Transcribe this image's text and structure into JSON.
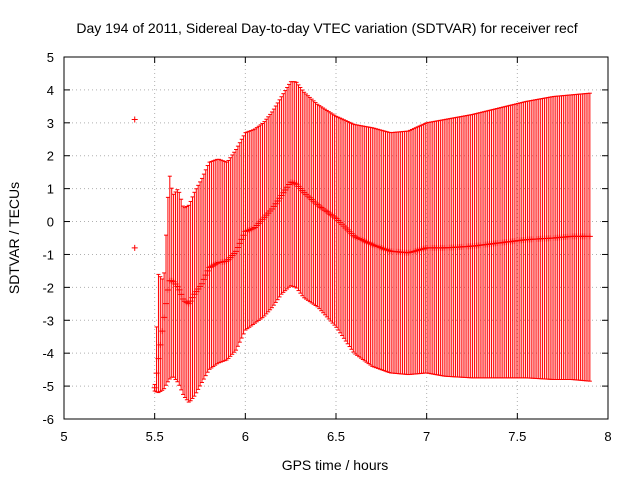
{
  "chart_data": {
    "type": "scatter",
    "title": "Day 194 of 2011, Sidereal Day-to-day VTEC variation (SDTVAR) for receiver recf",
    "xlabel": "GPS time / hours",
    "ylabel": "SDTVAR / TECUs",
    "xlim": [
      5,
      8
    ],
    "ylim": [
      -6,
      5
    ],
    "xticks": [
      "5",
      "5.5",
      "6",
      "6.5",
      "7",
      "7.5",
      "8"
    ],
    "yticks": [
      "-6",
      "-5",
      "-4",
      "-3",
      "-2",
      "-1",
      "0",
      "1",
      "2",
      "3",
      "4",
      "5"
    ],
    "grid": true,
    "series_color": "#ff0000",
    "error_bars": true,
    "isolated_points": [
      {
        "x": 5.39,
        "y": 3.1
      },
      {
        "x": 5.39,
        "y": -0.8
      }
    ],
    "profile": [
      {
        "x": 5.5,
        "y": -5.05,
        "upper": -4.95,
        "lower": -5.15
      },
      {
        "x": 5.52,
        "y": -4.2,
        "upper": -1.6,
        "lower": -5.2
      },
      {
        "x": 5.55,
        "y": -3.0,
        "upper": -1.8,
        "lower": -5.1
      },
      {
        "x": 5.58,
        "y": -1.8,
        "upper": 1.5,
        "lower": -4.8
      },
      {
        "x": 5.6,
        "y": -1.8,
        "upper": 0.8,
        "lower": -4.7
      },
      {
        "x": 5.63,
        "y": -2.0,
        "upper": 1.0,
        "lower": -4.9
      },
      {
        "x": 5.66,
        "y": -2.4,
        "upper": 0.4,
        "lower": -5.3
      },
      {
        "x": 5.69,
        "y": -2.5,
        "upper": 0.5,
        "lower": -5.5
      },
      {
        "x": 5.72,
        "y": -2.2,
        "upper": 0.9,
        "lower": -5.3
      },
      {
        "x": 5.76,
        "y": -1.9,
        "upper": 1.3,
        "lower": -4.9
      },
      {
        "x": 5.8,
        "y": -1.4,
        "upper": 1.8,
        "lower": -4.5
      },
      {
        "x": 5.85,
        "y": -1.25,
        "upper": 1.9,
        "lower": -4.3
      },
      {
        "x": 5.9,
        "y": -1.2,
        "upper": 1.8,
        "lower": -4.2
      },
      {
        "x": 5.95,
        "y": -0.9,
        "upper": 2.2,
        "lower": -3.9
      },
      {
        "x": 6.0,
        "y": -0.3,
        "upper": 2.7,
        "lower": -3.3
      },
      {
        "x": 6.05,
        "y": -0.2,
        "upper": 2.8,
        "lower": -3.1
      },
      {
        "x": 6.1,
        "y": 0.1,
        "upper": 3.0,
        "lower": -2.9
      },
      {
        "x": 6.15,
        "y": 0.4,
        "upper": 3.35,
        "lower": -2.6
      },
      {
        "x": 6.2,
        "y": 0.8,
        "upper": 3.8,
        "lower": -2.2
      },
      {
        "x": 6.25,
        "y": 1.2,
        "upper": 4.25,
        "lower": -1.95
      },
      {
        "x": 6.28,
        "y": 1.15,
        "upper": 4.25,
        "lower": -2.0
      },
      {
        "x": 6.32,
        "y": 0.9,
        "upper": 3.95,
        "lower": -2.3
      },
      {
        "x": 6.4,
        "y": 0.5,
        "upper": 3.55,
        "lower": -2.6
      },
      {
        "x": 6.5,
        "y": 0.1,
        "upper": 3.2,
        "lower": -3.2
      },
      {
        "x": 6.6,
        "y": -0.45,
        "upper": 2.95,
        "lower": -4.0
      },
      {
        "x": 6.7,
        "y": -0.7,
        "upper": 2.85,
        "lower": -4.4
      },
      {
        "x": 6.8,
        "y": -0.9,
        "upper": 2.7,
        "lower": -4.6
      },
      {
        "x": 6.9,
        "y": -0.95,
        "upper": 2.75,
        "lower": -4.65
      },
      {
        "x": 7.0,
        "y": -0.8,
        "upper": 3.0,
        "lower": -4.6
      },
      {
        "x": 7.1,
        "y": -0.8,
        "upper": 3.1,
        "lower": -4.7
      },
      {
        "x": 7.25,
        "y": -0.75,
        "upper": 3.25,
        "lower": -4.75
      },
      {
        "x": 7.4,
        "y": -0.65,
        "upper": 3.45,
        "lower": -4.75
      },
      {
        "x": 7.55,
        "y": -0.55,
        "upper": 3.65,
        "lower": -4.75
      },
      {
        "x": 7.7,
        "y": -0.5,
        "upper": 3.8,
        "lower": -4.8
      },
      {
        "x": 7.8,
        "y": -0.45,
        "upper": 3.85,
        "lower": -4.8
      },
      {
        "x": 7.9,
        "y": -0.45,
        "upper": 3.9,
        "lower": -4.85
      }
    ]
  }
}
